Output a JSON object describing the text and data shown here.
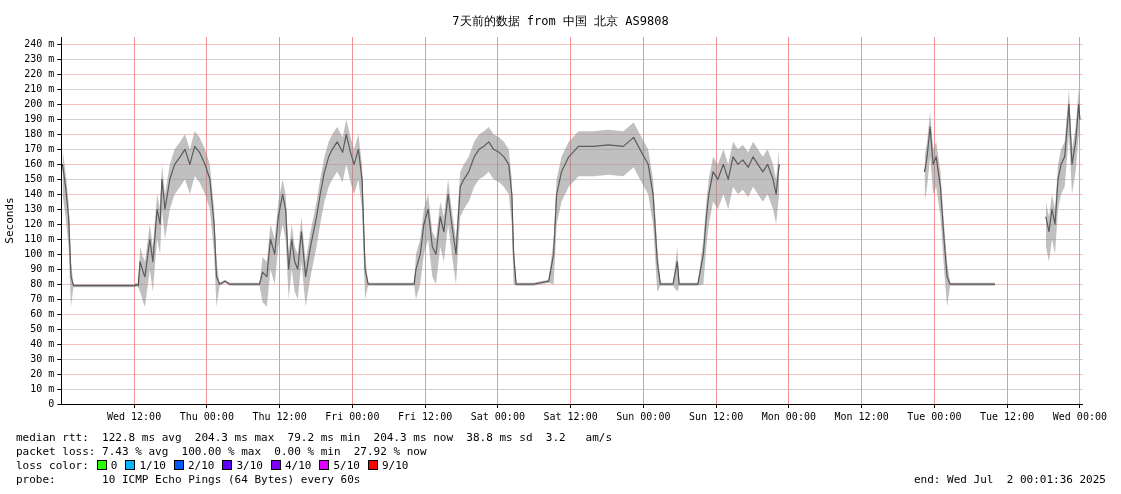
{
  "chart_data": {
    "type": "line",
    "title": "7天前的数据 from 中国 北京 AS9808",
    "ylabel": "Seconds",
    "xlim": [
      "2025-06-25T00:00",
      "2025-07-02T00:30"
    ],
    "xticks": [
      {
        "value": "2025-06-25T12:00",
        "label": "Wed 12:00"
      },
      {
        "value": "2025-06-26T00:00",
        "label": "Thu 00:00"
      },
      {
        "value": "2025-06-26T12:00",
        "label": "Thu 12:00"
      },
      {
        "value": "2025-06-27T00:00",
        "label": "Fri 00:00"
      },
      {
        "value": "2025-06-27T12:00",
        "label": "Fri 12:00"
      },
      {
        "value": "2025-06-28T00:00",
        "label": "Sat 00:00"
      },
      {
        "value": "2025-06-28T12:00",
        "label": "Sat 12:00"
      },
      {
        "value": "2025-06-29T00:00",
        "label": "Sun 00:00"
      },
      {
        "value": "2025-06-29T12:00",
        "label": "Sun 12:00"
      },
      {
        "value": "2025-06-30T00:00",
        "label": "Mon 00:00"
      },
      {
        "value": "2025-06-30T12:00",
        "label": "Mon 12:00"
      },
      {
        "value": "2025-07-01T00:00",
        "label": "Tue 00:00"
      },
      {
        "value": "2025-07-01T12:00",
        "label": "Tue 12:00"
      },
      {
        "value": "2025-07-02T00:00",
        "label": "Wed 00:00"
      }
    ],
    "ylim": [
      0,
      245
    ],
    "yticks": [
      0,
      {
        "value": 10,
        "label": "10 m"
      },
      {
        "value": 20,
        "label": "20 m"
      },
      {
        "value": 30,
        "label": "30 m"
      },
      {
        "value": 40,
        "label": "40 m"
      },
      {
        "value": 50,
        "label": "50 m"
      },
      {
        "value": 60,
        "label": "60 m"
      },
      {
        "value": 70,
        "label": "70 m"
      },
      {
        "value": 80,
        "label": "80 m"
      },
      {
        "value": 90,
        "label": "90 m"
      },
      {
        "value": 100,
        "label": "100 m"
      },
      {
        "value": 110,
        "label": "110 m"
      },
      {
        "value": 120,
        "label": "120 m"
      },
      {
        "value": 130,
        "label": "130 m"
      },
      {
        "value": 140,
        "label": "140 m"
      },
      {
        "value": 150,
        "label": "150 m"
      },
      {
        "value": 160,
        "label": "160 m"
      },
      {
        "value": 170,
        "label": "170 m"
      },
      {
        "value": 180,
        "label": "180 m"
      },
      {
        "value": 190,
        "label": "190 m"
      },
      {
        "value": 200,
        "label": "200 m"
      },
      {
        "value": 210,
        "label": "210 m"
      },
      {
        "value": 220,
        "label": "220 m"
      },
      {
        "value": 230,
        "label": "230 m"
      },
      {
        "value": 240,
        "label": "240 m"
      }
    ],
    "grid": true,
    "legend": "bottom",
    "legend_title": "loss color:",
    "marker": "none",
    "line_style": "solid",
    "series": [
      {
        "color": "#202020",
        "x": [
          "2025-06-25T00:12",
          "2025-06-25T00:42",
          "2025-06-25T01:12",
          "2025-06-25T01:36",
          "2025-06-25T02:00",
          "2025-06-25T05:36",
          "2025-06-25T12:12",
          "2025-06-25T12:18",
          "2025-06-25T12:42",
          "2025-06-25T13:00",
          "2025-06-25T13:30",
          "2025-06-25T13:48",
          "2025-06-25T14:36",
          "2025-06-25T15:06",
          "2025-06-25T15:48",
          "2025-06-25T16:18",
          "2025-06-25T16:36",
          "2025-06-25T17:06",
          "2025-06-25T17:54",
          "2025-06-25T18:42",
          "2025-06-25T19:36",
          "2025-06-25T20:24",
          "2025-06-25T21:12",
          "2025-06-25T22:00",
          "2025-06-25T22:48",
          "2025-06-25T23:42",
          "2025-06-26T00:30",
          "2025-06-26T01:12",
          "2025-06-26T01:36",
          "2025-06-26T02:06",
          "2025-06-26T03:00",
          "2025-06-26T03:48",
          "2025-06-26T06:12",
          "2025-06-26T08:42",
          "2025-06-26T09:12",
          "2025-06-26T09:54",
          "2025-06-26T10:30",
          "2025-06-26T11:12",
          "2025-06-26T11:48",
          "2025-06-26T12:30",
          "2025-06-26T13:00",
          "2025-06-26T13:30",
          "2025-06-26T14:00",
          "2025-06-26T14:30",
          "2025-06-26T15:00",
          "2025-06-26T15:36",
          "2025-06-26T16:18",
          "2025-06-26T17:06",
          "2025-06-26T18:06",
          "2025-06-26T18:42",
          "2025-06-26T19:24",
          "2025-06-26T20:06",
          "2025-06-26T20:42",
          "2025-06-26T21:30",
          "2025-06-26T22:24",
          "2025-06-26T23:00",
          "2025-06-26T23:42",
          "2025-06-27T00:18",
          "2025-06-27T01:00",
          "2025-06-27T01:36",
          "2025-06-27T02:06",
          "2025-06-27T02:36",
          "2025-06-27T10:12",
          "2025-06-27T10:30",
          "2025-06-27T11:12",
          "2025-06-27T11:48",
          "2025-06-27T12:30",
          "2025-06-27T13:12",
          "2025-06-27T13:48",
          "2025-06-27T14:30",
          "2025-06-27T15:06",
          "2025-06-27T15:48",
          "2025-06-27T16:24",
          "2025-06-27T17:06",
          "2025-06-27T17:48",
          "2025-06-27T18:24",
          "2025-06-27T19:12",
          "2025-06-27T20:06",
          "2025-06-27T20:54",
          "2025-06-27T21:42",
          "2025-06-27T22:30",
          "2025-06-27T23:18",
          "2025-06-28T00:12",
          "2025-06-28T01:00",
          "2025-06-28T01:48",
          "2025-06-28T02:18",
          "2025-06-28T02:36",
          "2025-06-28T03:00",
          "2025-06-28T05:54",
          "2025-06-28T08:24",
          "2025-06-28T09:12",
          "2025-06-28T09:42",
          "2025-06-28T10:30",
          "2025-06-28T11:42",
          "2025-06-28T13:18",
          "2025-06-28T15:48",
          "2025-06-28T18:12",
          "2025-06-28T20:42",
          "2025-06-28T22:24",
          "2025-06-28T23:42",
          "2025-06-29T00:48",
          "2025-06-29T01:36",
          "2025-06-29T02:18",
          "2025-06-29T02:48",
          "2025-06-29T04:54",
          "2025-06-29T05:36",
          "2025-06-29T05:54",
          "2025-06-29T09:00",
          "2025-06-29T09:54",
          "2025-06-29T10:24",
          "2025-06-29T10:48",
          "2025-06-29T11:30",
          "2025-06-29T12:18",
          "2025-06-29T13:12",
          "2025-06-29T14:00",
          "2025-06-29T14:48",
          "2025-06-29T15:36",
          "2025-06-29T16:24",
          "2025-06-29T17:18",
          "2025-06-29T18:06",
          "2025-06-29T18:54",
          "2025-06-29T19:42",
          "2025-06-29T20:30",
          "2025-06-29T21:24",
          "2025-06-29T21:54",
          "2025-06-29T22:24",
          "2025-06-29T23:00",
          "2025-06-30T22:24",
          "2025-06-30T22:48",
          "2025-06-30T23:18",
          "2025-06-30T23:48",
          "2025-07-01T00:18",
          "2025-07-01T01:00",
          "2025-07-01T01:36",
          "2025-07-01T02:06",
          "2025-07-01T02:36",
          "2025-07-01T06:12",
          "2025-07-01T10:00",
          "2025-07-01T11:00",
          "2025-07-01T18:24",
          "2025-07-01T18:54",
          "2025-07-01T19:24",
          "2025-07-01T19:54",
          "2025-07-01T20:24",
          "2025-07-01T20:54",
          "2025-07-01T21:30",
          "2025-07-01T22:12",
          "2025-07-01T22:42",
          "2025-07-01T23:18",
          "2025-07-01T23:48",
          "2025-07-02T00:00"
        ],
        "values": [
          160,
          145,
          125,
          85,
          79,
          79,
          79,
          80,
          79,
          95,
          88,
          85,
          110,
          95,
          130,
          120,
          150,
          130,
          150,
          160,
          165,
          170,
          160,
          172,
          168,
          160,
          150,
          120,
          85,
          80,
          82,
          80,
          80,
          80,
          88,
          85,
          110,
          100,
          125,
          140,
          130,
          90,
          110,
          95,
          90,
          115,
          85,
          105,
          125,
          140,
          155,
          165,
          170,
          175,
          168,
          180,
          168,
          160,
          170,
          150,
          90,
          80,
          80,
          90,
          100,
          120,
          130,
          105,
          100,
          125,
          115,
          140,
          120,
          100,
          145,
          150,
          155,
          165,
          170,
          172,
          175,
          170,
          168,
          165,
          160,
          140,
          100,
          80,
          80,
          82,
          100,
          140,
          155,
          165,
          172,
          172,
          173,
          172,
          178,
          168,
          160,
          140,
          95,
          80,
          80,
          95,
          80,
          80,
          100,
          125,
          140,
          155,
          150,
          160,
          150,
          165,
          160,
          163,
          158,
          165,
          160,
          155,
          160,
          150,
          140,
          160,
          null,
          155,
          165,
          185,
          160,
          165,
          145,
          110,
          85,
          80,
          80,
          80,
          null,
          125,
          115,
          130,
          120,
          150,
          160,
          165,
          200,
          160,
          175,
          200,
          190
        ],
        "lower": [
          140,
          125,
          105,
          65,
          78,
          78,
          78,
          79,
          78,
          75,
          68,
          65,
          90,
          75,
          110,
          100,
          130,
          110,
          130,
          140,
          145,
          150,
          140,
          152,
          148,
          140,
          130,
          100,
          65,
          79,
          81,
          79,
          79,
          79,
          68,
          65,
          90,
          80,
          105,
          120,
          110,
          70,
          90,
          75,
          70,
          95,
          65,
          85,
          105,
          120,
          135,
          145,
          150,
          155,
          148,
          160,
          148,
          140,
          150,
          130,
          70,
          79,
          79,
          70,
          80,
          100,
          110,
          85,
          80,
          105,
          95,
          120,
          100,
          80,
          125,
          130,
          135,
          145,
          150,
          152,
          155,
          150,
          148,
          145,
          140,
          120,
          80,
          79,
          79,
          81,
          80,
          120,
          135,
          145,
          152,
          152,
          153,
          152,
          158,
          148,
          140,
          120,
          75,
          79,
          79,
          75,
          79,
          79,
          80,
          105,
          120,
          135,
          130,
          140,
          130,
          145,
          140,
          143,
          138,
          145,
          140,
          135,
          140,
          130,
          120,
          140,
          null,
          135,
          145,
          165,
          140,
          145,
          125,
          90,
          65,
          79,
          79,
          79,
          null,
          105,
          95,
          110,
          100,
          130,
          140,
          145,
          180,
          140,
          155,
          180,
          170
        ],
        "upper": [
          170,
          155,
          135,
          95,
          80,
          80,
          80,
          81,
          80,
          105,
          98,
          95,
          120,
          105,
          140,
          130,
          160,
          140,
          160,
          170,
          175,
          180,
          170,
          182,
          178,
          170,
          160,
          130,
          95,
          81,
          83,
          81,
          81,
          81,
          98,
          95,
          120,
          110,
          135,
          150,
          140,
          100,
          120,
          105,
          100,
          125,
          95,
          115,
          135,
          150,
          165,
          175,
          180,
          185,
          178,
          190,
          178,
          170,
          180,
          160,
          100,
          81,
          81,
          100,
          110,
          130,
          140,
          115,
          110,
          135,
          125,
          150,
          130,
          110,
          155,
          160,
          165,
          175,
          180,
          182,
          185,
          180,
          178,
          175,
          170,
          150,
          110,
          81,
          81,
          83,
          110,
          150,
          165,
          175,
          182,
          182,
          183,
          182,
          188,
          178,
          170,
          150,
          105,
          81,
          81,
          105,
          81,
          81,
          110,
          135,
          150,
          165,
          160,
          170,
          160,
          175,
          170,
          173,
          168,
          175,
          170,
          165,
          170,
          160,
          150,
          170,
          null,
          165,
          175,
          195,
          170,
          175,
          155,
          120,
          95,
          81,
          81,
          81,
          null,
          135,
          125,
          140,
          130,
          160,
          170,
          175,
          210,
          170,
          185,
          210,
          200
        ]
      },
      {
        "name": "0",
        "color": "#26ff00"
      },
      {
        "name": "1/10",
        "color": "#00b8ff"
      },
      {
        "name": "2/10",
        "color": "#0059ff"
      },
      {
        "name": "3/10",
        "color": "#5e00ff"
      },
      {
        "name": "4/10",
        "color": "#7e00ff"
      },
      {
        "name": "5/10",
        "color": "#dd00ff"
      },
      {
        "name": "9/10",
        "color": "#ff0000"
      }
    ],
    "annotations": [
      "median rtt:  122.8 ms avg  204.3 ms max  79.2 ms min  204.3 ms now  38.8 ms sd  3.2   am/s",
      "packet loss: 7.43 % avg  100.00 % max  0.00 % min  27.92 % now",
      "probe:       10 ICMP Echo Pings (64 Bytes) every 60s",
      "end: Wed Jul  2 00:01:36 2025"
    ]
  }
}
